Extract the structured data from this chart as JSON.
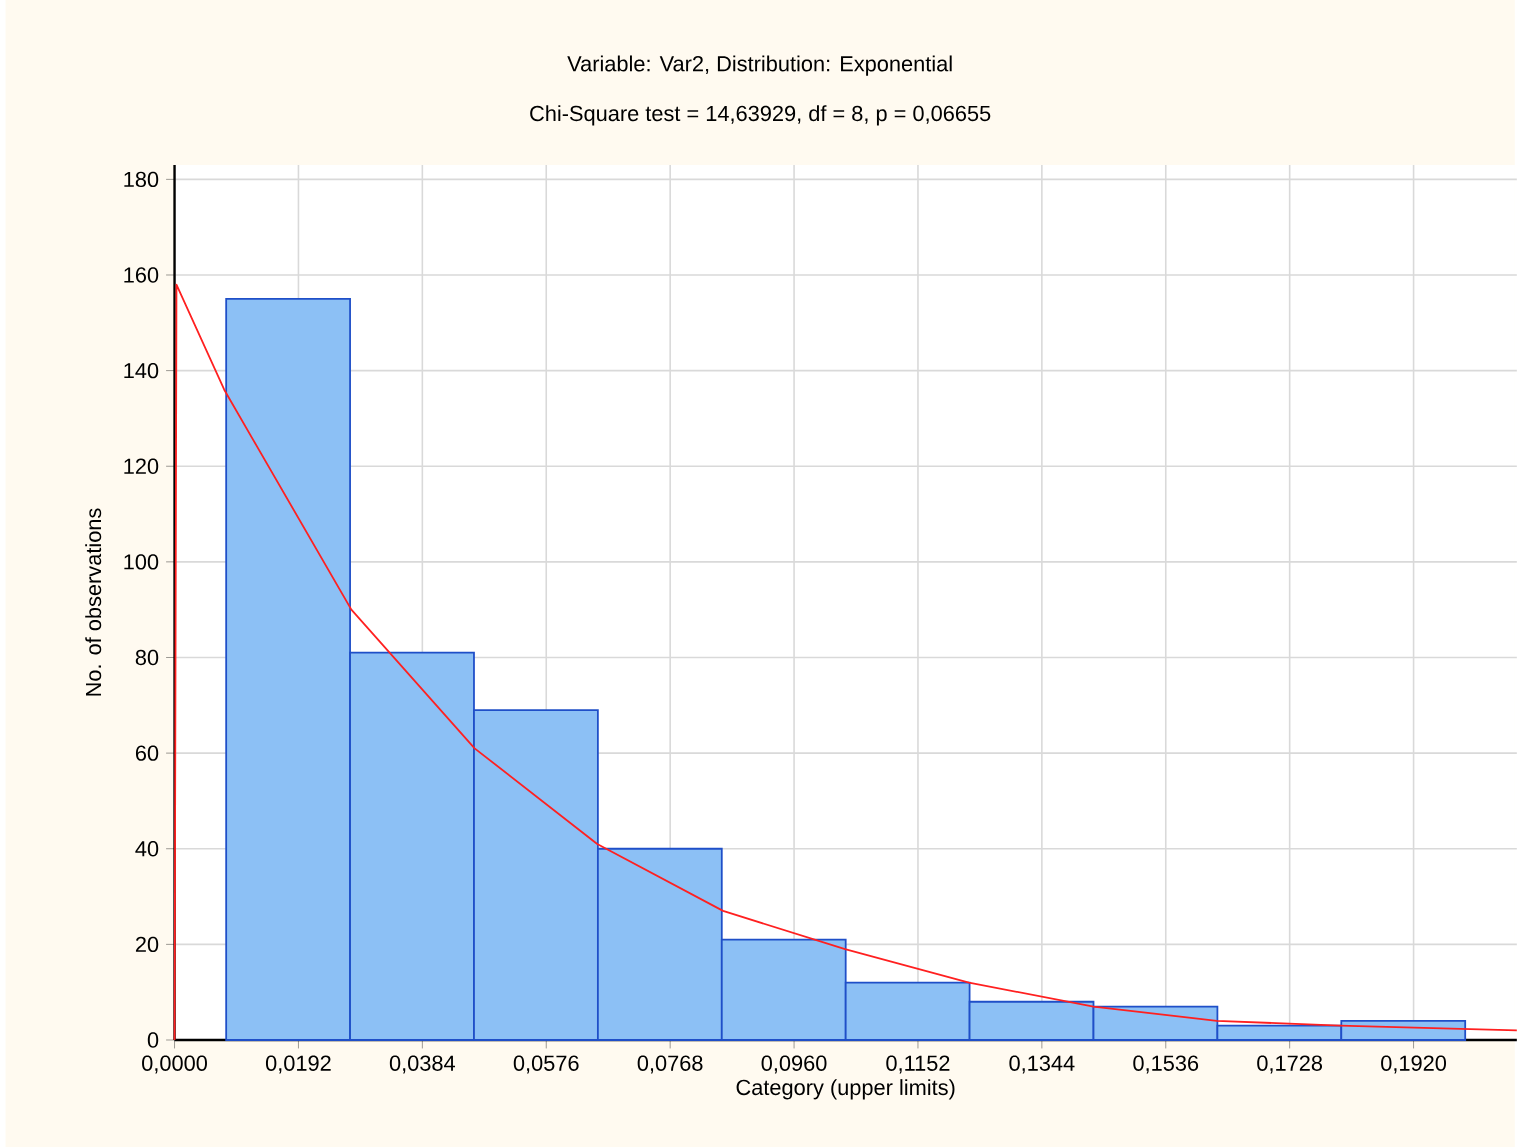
{
  "chart_data": {
    "type": "histogram",
    "title": "Variable: Var2, Distribution: Exponential",
    "subtitle": "Chi-Square test = 14,63929, df = 8, p = 0,06655",
    "xlabel": "Category (upper limits)",
    "ylabel": "No. of observations",
    "bins": [
      0.008,
      0.0272,
      0.0464,
      0.0656,
      0.0848,
      0.104,
      0.1232,
      0.1424,
      0.1616,
      0.1808,
      0.2
    ],
    "values": [
      155,
      81,
      69,
      40,
      21,
      12,
      8,
      7,
      3,
      4
    ],
    "color": "#8cc0f5",
    "series": [
      {
        "type": "line",
        "color": "#ff2020",
        "x": [
          0.0,
          0.0003,
          0.0077,
          0.0274,
          0.0465,
          0.0655,
          0.085,
          0.1039,
          0.1231,
          0.1424,
          0.1615,
          0.1806,
          0.208
        ],
        "values": [
          0,
          158,
          136,
          90,
          61,
          41,
          27,
          19,
          12,
          7,
          4,
          3,
          2
        ]
      }
    ],
    "xlim": [
      0,
      0.208
    ],
    "ylim": [
      0,
      183
    ],
    "xticks": [
      {
        "value": 0,
        "label": "0,0000"
      },
      {
        "value": 0.0192,
        "label": "0,0192"
      },
      {
        "value": 0.0384,
        "label": "0,0384"
      },
      {
        "value": 0.0576,
        "label": "0,0576"
      },
      {
        "value": 0.0768,
        "label": "0,0768"
      },
      {
        "value": 0.096,
        "label": "0,0960"
      },
      {
        "value": 0.1152,
        "label": "0,1152"
      },
      {
        "value": 0.1344,
        "label": "0,1344"
      },
      {
        "value": 0.1536,
        "label": "0,1536"
      },
      {
        "value": 0.1728,
        "label": "0,1728"
      },
      {
        "value": 0.192,
        "label": "0,1920"
      }
    ],
    "yticks": [
      0,
      20,
      40,
      60,
      80,
      100,
      120,
      140,
      160,
      180
    ],
    "grid": true
  }
}
